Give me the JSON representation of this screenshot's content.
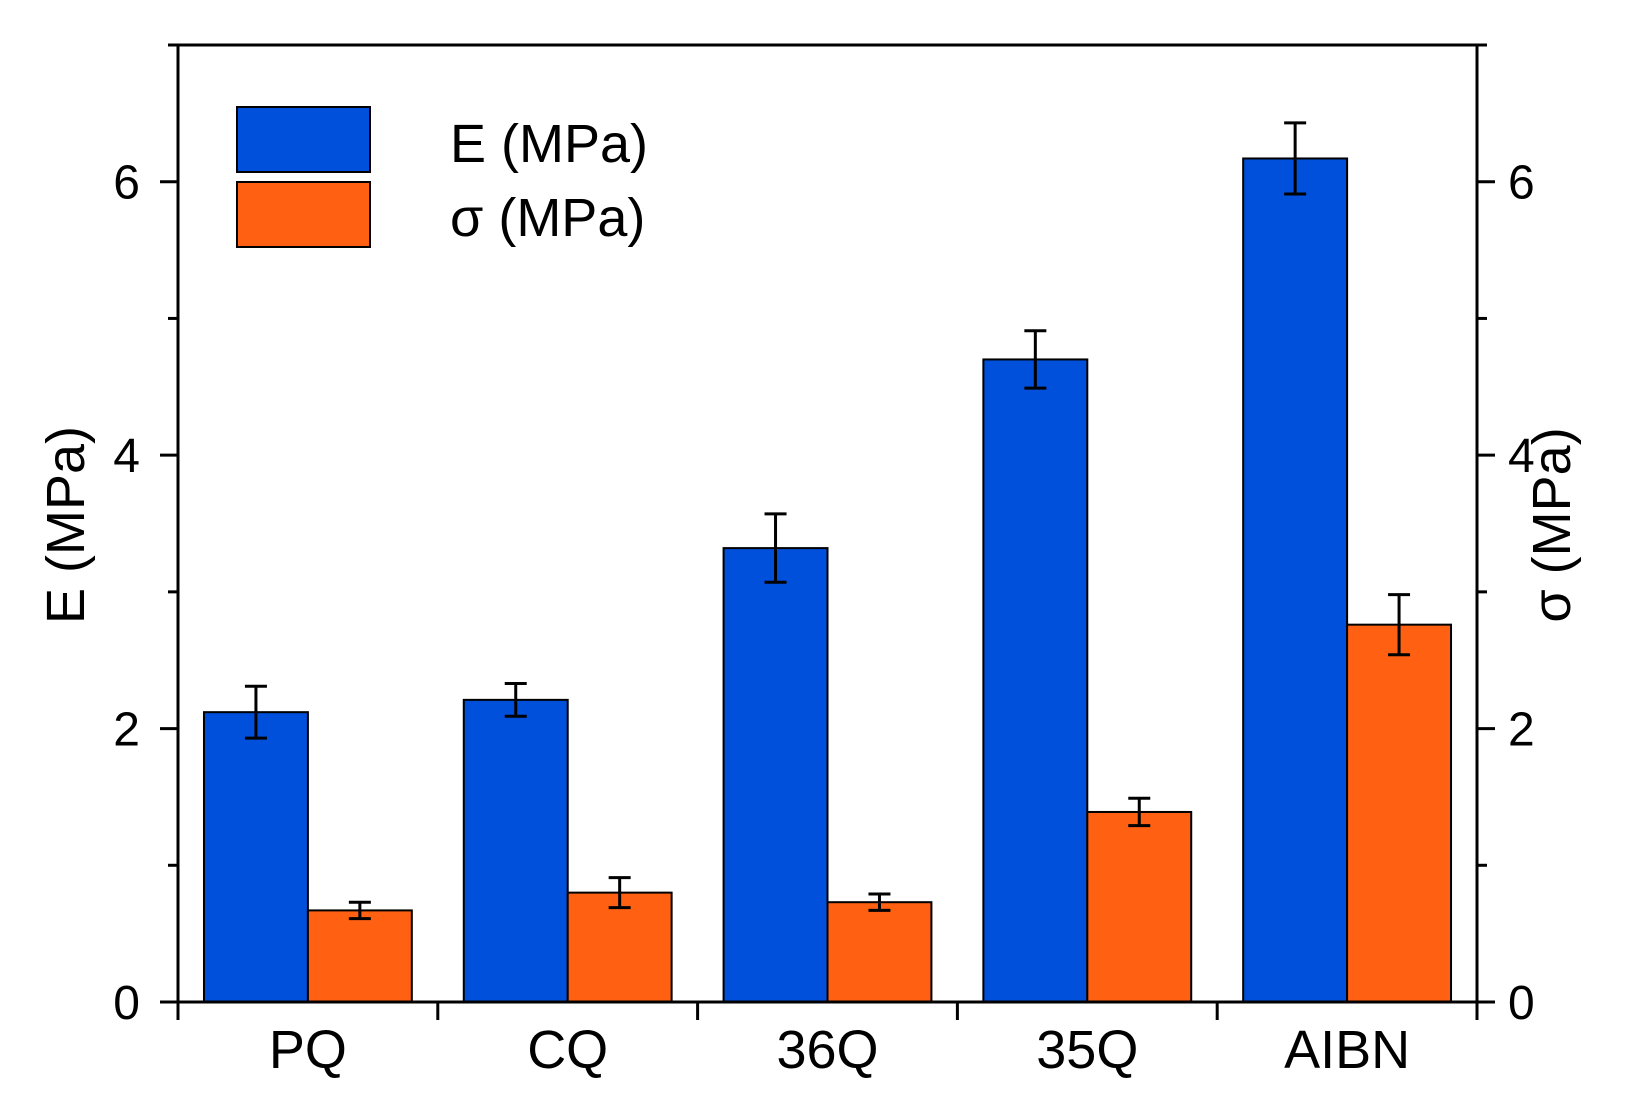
{
  "chart_data": {
    "type": "bar",
    "categories": [
      "PQ",
      "CQ",
      "36Q",
      "35Q",
      "AIBN"
    ],
    "series": [
      {
        "name": "E (MPa)",
        "color": "#0050dc",
        "values": [
          2.12,
          2.21,
          3.32,
          4.7,
          6.17
        ],
        "errors": [
          0.19,
          0.12,
          0.25,
          0.21,
          0.26
        ]
      },
      {
        "name": "σ (MPa)",
        "color": "#ff6012",
        "values": [
          0.67,
          0.8,
          0.73,
          1.39,
          2.76
        ],
        "errors": [
          0.06,
          0.11,
          0.06,
          0.1,
          0.22
        ]
      }
    ],
    "ylabel": "E (MPa)",
    "y2label": "σ (MPa)",
    "ylim": [
      0,
      7
    ],
    "y2lim": [
      0,
      7
    ],
    "yticks": [
      "0",
      "2",
      "4",
      "6"
    ],
    "y2ticks": [
      "0",
      "2",
      "4",
      "6"
    ],
    "legend_position": "top-left",
    "grid": false
  }
}
